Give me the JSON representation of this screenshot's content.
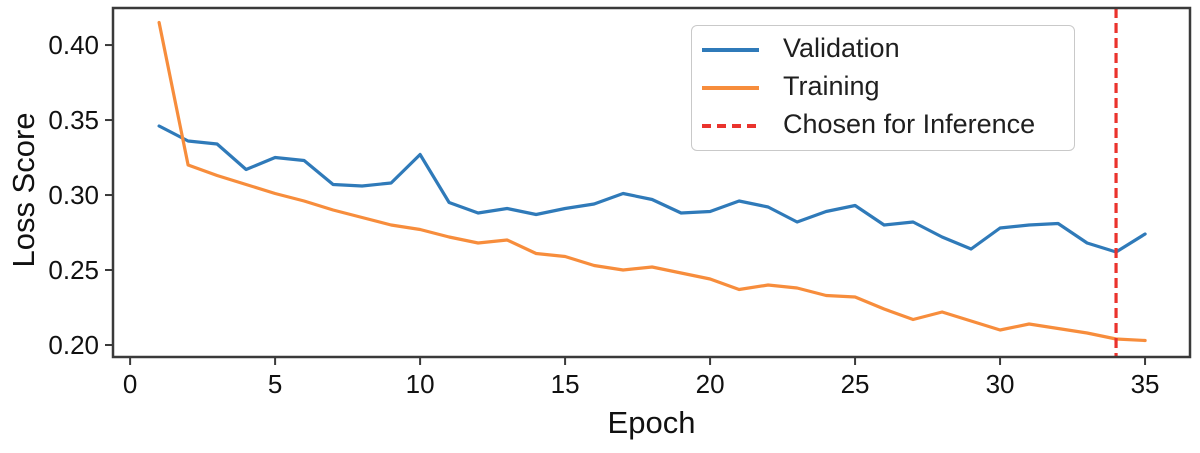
{
  "chart_data": {
    "type": "line",
    "title": "",
    "xlabel": "Epoch",
    "ylabel": "Loss Score",
    "x": [
      1,
      2,
      3,
      4,
      5,
      6,
      7,
      8,
      9,
      10,
      11,
      12,
      13,
      14,
      15,
      16,
      17,
      18,
      19,
      20,
      21,
      22,
      23,
      24,
      25,
      26,
      27,
      28,
      29,
      30,
      31,
      32,
      33,
      34,
      35
    ],
    "series": [
      {
        "name": "Validation",
        "color": "#2f7ab9",
        "values": [
          0.346,
          0.336,
          0.334,
          0.317,
          0.325,
          0.323,
          0.307,
          0.306,
          0.308,
          0.327,
          0.295,
          0.288,
          0.291,
          0.287,
          0.291,
          0.294,
          0.301,
          0.297,
          0.288,
          0.289,
          0.296,
          0.292,
          0.282,
          0.289,
          0.293,
          0.28,
          0.282,
          0.272,
          0.264,
          0.278,
          0.28,
          0.281,
          0.268,
          0.262,
          0.274
        ]
      },
      {
        "name": "Training",
        "color": "#f78d3c",
        "values": [
          0.415,
          0.32,
          0.313,
          0.307,
          0.301,
          0.296,
          0.29,
          0.285,
          0.28,
          0.277,
          0.272,
          0.268,
          0.27,
          0.261,
          0.259,
          0.253,
          0.25,
          0.252,
          0.248,
          0.244,
          0.237,
          0.24,
          0.238,
          0.233,
          0.232,
          0.224,
          0.217,
          0.222,
          0.216,
          0.21,
          0.214,
          0.211,
          0.208,
          0.204,
          0.203
        ]
      }
    ],
    "vline": {
      "label": "Chosen for Inference",
      "x": 34,
      "color": "#ea332d",
      "style": "dashed"
    },
    "xticks": [
      0,
      5,
      10,
      15,
      20,
      25,
      30,
      35
    ],
    "yticks": [
      0.4,
      0.35,
      0.3,
      0.25,
      0.2
    ],
    "xlim": [
      -0.59,
      36.55
    ],
    "ylim": [
      0.192,
      0.4247
    ],
    "grid": false,
    "legend_position": "upper right",
    "axis_color": "#3a3a3a",
    "tick_label_color": "#111111"
  }
}
